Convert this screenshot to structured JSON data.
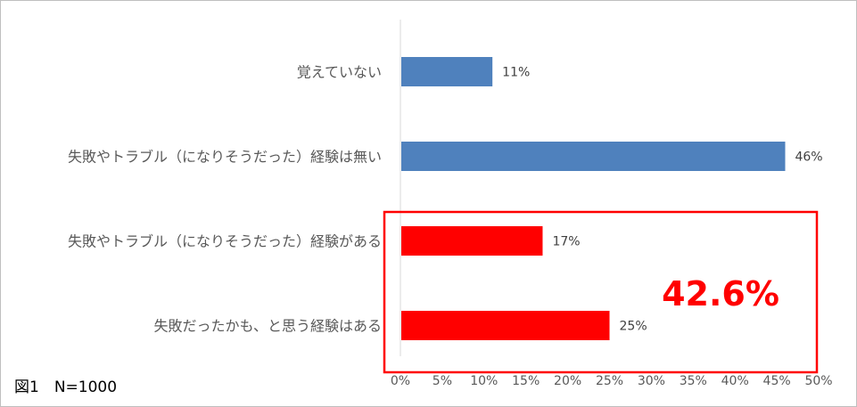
{
  "chart_data": {
    "type": "bar",
    "orientation": "horizontal",
    "categories": [
      "覚えていない",
      "失敗やトラブル（になりそうだった）経験は無い",
      "失敗やトラブル（になりそうだった）経験がある",
      "失敗だったかも、と思う経験はある"
    ],
    "values": [
      11,
      46,
      17,
      25
    ],
    "value_labels": [
      "11%",
      "46%",
      "17%",
      "25%"
    ],
    "bar_colors": [
      "#4f81bd",
      "#4f81bd",
      "#ff0000",
      "#ff0000"
    ],
    "xlim": [
      0,
      50
    ],
    "xticks": [
      "0%",
      "5%",
      "10%",
      "15%",
      "20%",
      "25%",
      "30%",
      "35%",
      "40%",
      "45%",
      "50%"
    ],
    "grid": false,
    "highlight": {
      "label": "42.6%",
      "color": "#ff0000",
      "categories": [
        2,
        3
      ]
    }
  },
  "caption": "図1　N=1000"
}
